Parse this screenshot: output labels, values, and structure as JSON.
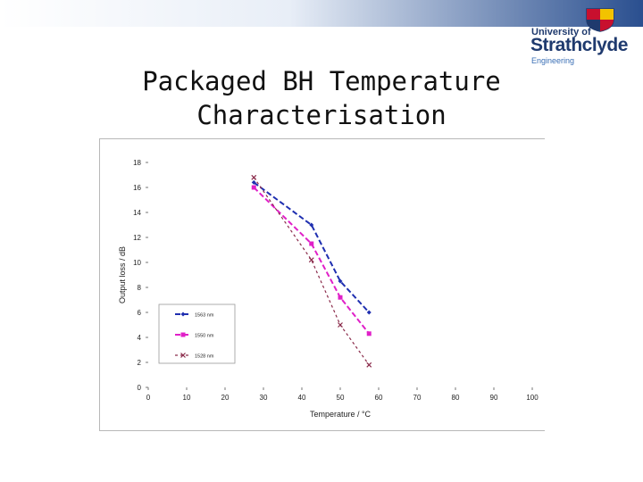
{
  "header": {
    "title_line1": "Packaged BH Temperature",
    "title_line2": "Characterisation",
    "logo_line1": "University of",
    "logo_line2": "Strathclyde",
    "logo_line3": "Engineering",
    "accent_color": "#2a4f8f"
  },
  "chart_data": {
    "type": "line",
    "title": "",
    "xlabel": "Temperature / °C",
    "ylabel": "Output loss / dB",
    "xlim": [
      0,
      100
    ],
    "ylim": [
      0,
      18
    ],
    "xticks": [
      0,
      10,
      20,
      30,
      40,
      50,
      60,
      70,
      80,
      90,
      100
    ],
    "yticks": [
      0,
      2,
      4,
      6,
      8,
      10,
      12,
      14,
      16,
      18
    ],
    "grid": false,
    "legend_position": "bottom-left",
    "series": [
      {
        "name": "1563 nm",
        "color": "#1f2fb0",
        "dash": "6,3",
        "marker": "diamond",
        "x": [
          27.5,
          42.5,
          50,
          57.5
        ],
        "y": [
          16.4,
          13.0,
          8.5,
          6.0
        ]
      },
      {
        "name": "1550 nm",
        "color": "#e020c8",
        "dash": "6,3",
        "marker": "square",
        "x": [
          27.5,
          42.5,
          50,
          57.5
        ],
        "y": [
          16.0,
          11.5,
          7.2,
          4.3
        ]
      },
      {
        "name": "1528 nm",
        "color": "#8a2a4a",
        "dash": "3,3",
        "marker": "cross",
        "x": [
          27.5,
          42.5,
          50,
          57.5
        ],
        "y": [
          16.8,
          10.2,
          5.0,
          1.8
        ]
      }
    ]
  }
}
